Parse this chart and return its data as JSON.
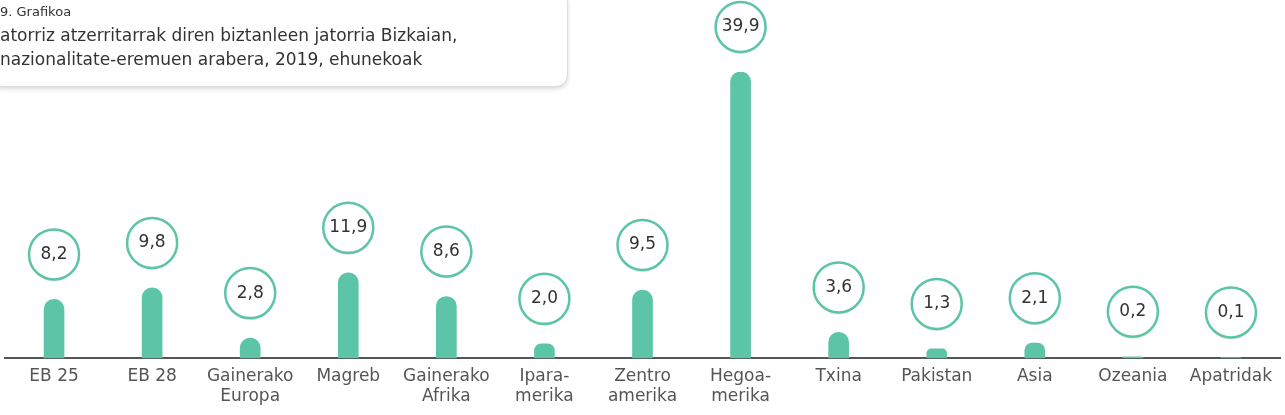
{
  "chart_data": {
    "type": "bar",
    "subtitle": "9. Grafikoa",
    "title": "atorriz atzerritarrak diren biztanleen jatorria Bizkaian, nazionalitate-eremuen arabera, 2019, ehunekoak",
    "categories": [
      "EB 25",
      "EB 28",
      "Gainerako Europa",
      "Magreb",
      "Gainerako Afrika",
      "Ipara-merika",
      "Zentro amerika",
      "Hegoa-merika",
      "Txina",
      "Pakistan",
      "Asia",
      "Ozeania",
      "Apatridak"
    ],
    "values": [
      8.2,
      9.8,
      2.8,
      11.9,
      8.6,
      2.0,
      9.5,
      39.9,
      3.6,
      1.3,
      2.1,
      0.2,
      0.1
    ],
    "value_labels": [
      "8,2",
      "9,8",
      "2,8",
      "11,9",
      "8,6",
      "2,0",
      "9,5",
      "39,9",
      "3,6",
      "1,3",
      "2,1",
      "0,2",
      "0,1"
    ],
    "color": "#5cc4a7",
    "grid": false,
    "legend": false
  }
}
